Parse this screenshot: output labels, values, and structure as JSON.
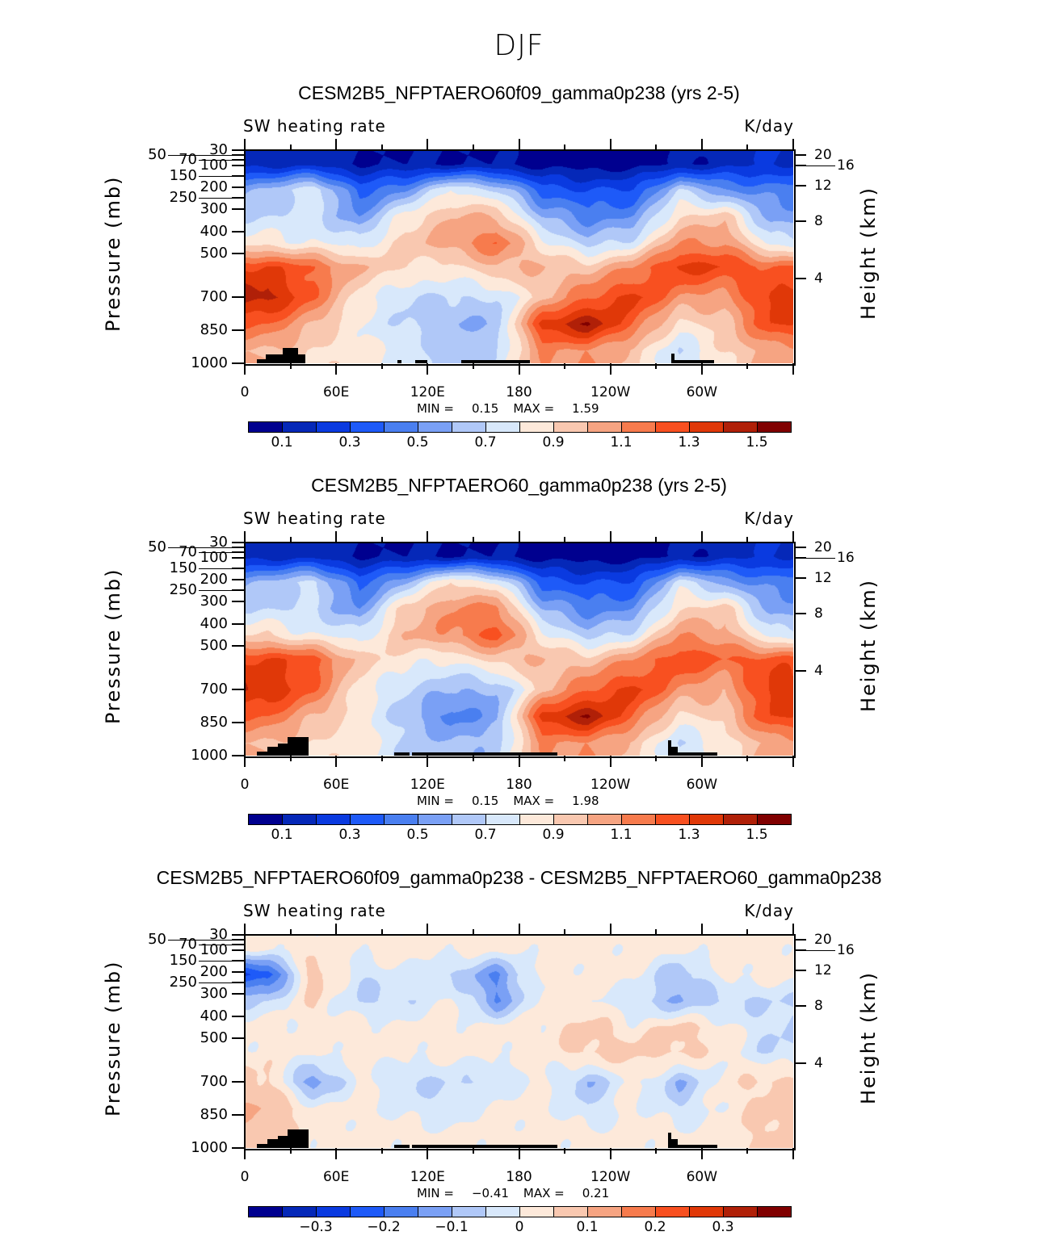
{
  "title": "DJF",
  "chart_data": [
    {
      "type": "heatmap",
      "title": "CESM2B5_NFPTAERO60f09_gamma0p238 (yrs 2-5)",
      "subtitle_left": "SW heating rate",
      "subtitle_right": "K/day",
      "ylabel": "Pressure (mb)",
      "ylabel_right": "Height (km)",
      "xticks": [
        "0",
        "60E",
        "120E",
        "180",
        "120W",
        "60W"
      ],
      "yticks": [
        "30",
        "50",
        "70",
        "100",
        "150",
        "200",
        "250",
        "300",
        "400",
        "500",
        "700",
        "850",
        "1000"
      ],
      "yticks_right": [
        "20",
        "16",
        "12",
        "8",
        "4"
      ],
      "min_label": "MIN =",
      "min": "0.15",
      "max_label": "MAX =",
      "max": "1.59",
      "levels": [
        0.1,
        0.2,
        0.3,
        0.4,
        0.5,
        0.6,
        0.7,
        0.8,
        0.9,
        1.0,
        1.1,
        1.2,
        1.3,
        1.4,
        1.5
      ],
      "colorbar_labels": [
        "0.1",
        "0.3",
        "0.5",
        "0.7",
        "0.9",
        "1.1",
        "1.3",
        "1.5"
      ],
      "grid_lon": [
        15,
        45,
        75,
        105,
        135,
        165,
        195,
        225,
        255,
        285,
        315,
        345
      ],
      "grid_p": [
        90,
        210,
        330,
        450,
        560,
        700,
        820,
        940
      ],
      "values": [
        [
          0.15,
          0.15,
          0.1,
          0.1,
          0.1,
          0.1,
          0.05,
          0.05,
          0.05,
          0.1,
          0.15,
          0.2
        ],
        [
          0.6,
          0.8,
          0.35,
          0.5,
          0.8,
          0.7,
          0.35,
          0.3,
          0.3,
          0.7,
          0.5,
          0.45
        ],
        [
          0.7,
          0.75,
          0.5,
          0.85,
          1.0,
          1.0,
          0.6,
          0.45,
          0.5,
          0.9,
          0.95,
          0.55
        ],
        [
          0.85,
          0.8,
          0.75,
          0.95,
          1.05,
          1.2,
          0.85,
          0.65,
          0.75,
          1.1,
          1.1,
          0.75
        ],
        [
          1.3,
          1.2,
          1.0,
          0.9,
          0.85,
          1.0,
          1.0,
          0.95,
          1.1,
          1.35,
          1.3,
          1.2
        ],
        [
          1.45,
          1.2,
          0.85,
          0.7,
          0.7,
          0.7,
          0.95,
          1.2,
          1.35,
          1.1,
          1.05,
          1.35
        ],
        [
          1.2,
          1.0,
          0.8,
          0.7,
          0.6,
          0.6,
          1.35,
          1.5,
          1.2,
          0.85,
          0.95,
          1.3
        ],
        [
          1.0,
          0.9,
          0.85,
          0.75,
          0.65,
          0.7,
          1.1,
          1.1,
          0.95,
          0.7,
          0.9,
          1.05
        ]
      ],
      "topography": [
        [
          8,
          14,
          980
        ],
        [
          14,
          25,
          960
        ],
        [
          25,
          35,
          930
        ],
        [
          35,
          40,
          960
        ],
        [
          100,
          103,
          985
        ],
        [
          112,
          120,
          985
        ],
        [
          142,
          187,
          985
        ],
        [
          280,
          282,
          955
        ],
        [
          282,
          308,
          985
        ]
      ]
    },
    {
      "type": "heatmap",
      "title": "CESM2B5_NFPTAERO60_gamma0p238 (yrs 2-5)",
      "subtitle_left": "SW heating rate",
      "subtitle_right": "K/day",
      "ylabel": "Pressure (mb)",
      "ylabel_right": "Height (km)",
      "xticks": [
        "0",
        "60E",
        "120E",
        "180",
        "120W",
        "60W"
      ],
      "yticks": [
        "30",
        "50",
        "70",
        "100",
        "150",
        "200",
        "250",
        "300",
        "400",
        "500",
        "700",
        "850",
        "1000"
      ],
      "yticks_right": [
        "20",
        "16",
        "12",
        "8",
        "4"
      ],
      "min_label": "MIN =",
      "min": "0.15",
      "max_label": "MAX =",
      "max": "1.98",
      "levels": [
        0.1,
        0.2,
        0.3,
        0.4,
        0.5,
        0.6,
        0.7,
        0.8,
        0.9,
        1.0,
        1.1,
        1.2,
        1.3,
        1.4,
        1.5
      ],
      "colorbar_labels": [
        "0.1",
        "0.3",
        "0.5",
        "0.7",
        "0.9",
        "1.1",
        "1.3",
        "1.5"
      ],
      "grid_lon": [
        15,
        45,
        75,
        105,
        135,
        165,
        195,
        225,
        255,
        285,
        315,
        345
      ],
      "grid_p": [
        90,
        210,
        330,
        450,
        560,
        700,
        820,
        940
      ],
      "values": [
        [
          0.15,
          0.15,
          0.1,
          0.1,
          0.1,
          0.1,
          0.05,
          0.05,
          0.05,
          0.1,
          0.15,
          0.2
        ],
        [
          0.6,
          0.75,
          0.35,
          0.6,
          0.9,
          0.8,
          0.35,
          0.3,
          0.3,
          0.75,
          0.55,
          0.45
        ],
        [
          0.7,
          0.7,
          0.5,
          0.95,
          1.1,
          1.15,
          0.6,
          0.45,
          0.5,
          0.9,
          0.95,
          0.55
        ],
        [
          0.9,
          0.8,
          0.75,
          1.0,
          1.1,
          1.25,
          0.85,
          0.65,
          0.75,
          1.1,
          1.05,
          0.75
        ],
        [
          1.3,
          1.25,
          0.95,
          0.85,
          0.8,
          0.95,
          1.0,
          0.95,
          1.1,
          1.3,
          1.2,
          1.25
        ],
        [
          1.4,
          1.2,
          0.85,
          0.7,
          0.6,
          0.6,
          0.95,
          1.2,
          1.35,
          1.1,
          1.0,
          1.35
        ],
        [
          1.2,
          1.0,
          0.85,
          0.65,
          0.45,
          0.55,
          1.35,
          1.5,
          1.2,
          0.85,
          0.95,
          1.3
        ],
        [
          1.0,
          0.9,
          0.85,
          0.7,
          0.6,
          0.65,
          1.1,
          1.1,
          0.95,
          0.7,
          0.85,
          1.05
        ]
      ],
      "topography": [
        [
          8,
          15,
          980
        ],
        [
          15,
          22,
          960
        ],
        [
          22,
          28,
          945
        ],
        [
          28,
          42,
          915
        ],
        [
          98,
          108,
          985
        ],
        [
          110,
          205,
          985
        ],
        [
          278,
          280,
          930
        ],
        [
          280,
          284,
          960
        ],
        [
          284,
          310,
          985
        ]
      ]
    },
    {
      "type": "heatmap",
      "title": "CESM2B5_NFPTAERO60f09_gamma0p238 - CESM2B5_NFPTAERO60_gamma0p238",
      "subtitle_left": "SW heating rate",
      "subtitle_right": "K/day",
      "ylabel": "Pressure (mb)",
      "ylabel_right": "Height (km)",
      "xticks": [
        "0",
        "60E",
        "120E",
        "180",
        "120W",
        "60W"
      ],
      "yticks": [
        "30",
        "50",
        "70",
        "100",
        "150",
        "200",
        "250",
        "300",
        "400",
        "500",
        "700",
        "850",
        "1000"
      ],
      "yticks_right": [
        "20",
        "16",
        "12",
        "8",
        "4"
      ],
      "min_label": "MIN =",
      "min": "−0.41",
      "max_label": "MAX =",
      "max": "0.21",
      "levels": [
        -0.35,
        -0.3,
        -0.25,
        -0.2,
        -0.15,
        -0.1,
        -0.05,
        0,
        0.05,
        0.1,
        0.15,
        0.2,
        0.25,
        0.3,
        0.35
      ],
      "colorbar_labels": [
        "−0.3",
        "−0.2",
        "−0.1",
        "0",
        "0.1",
        "0.2",
        "0.3"
      ],
      "grid_lon": [
        15,
        45,
        75,
        105,
        135,
        165,
        195,
        225,
        255,
        285,
        315,
        345
      ],
      "grid_p": [
        90,
        210,
        330,
        450,
        560,
        700,
        820,
        940
      ],
      "values": [
        [
          0.02,
          0.02,
          0.02,
          0.02,
          0.02,
          0.02,
          0.02,
          0.02,
          0.02,
          0.02,
          0.02,
          0.02
        ],
        [
          -0.25,
          0.1,
          -0.05,
          0,
          -0.05,
          -0.15,
          0.02,
          0.02,
          0.02,
          -0.1,
          0.02,
          0.02
        ],
        [
          -0.05,
          0.05,
          -0.05,
          -0.05,
          0.02,
          -0.15,
          0.02,
          0.02,
          -0.05,
          -0.1,
          -0.05,
          -0.05
        ],
        [
          0.02,
          0.02,
          0.02,
          0.02,
          0.02,
          0.02,
          0.02,
          0.07,
          0.02,
          0.07,
          0.02,
          -0.05
        ],
        [
          0.02,
          0.02,
          0.02,
          0.02,
          0.02,
          0.02,
          0.02,
          0.07,
          0.07,
          0.07,
          0.02,
          -0.05
        ],
        [
          0.07,
          -0.15,
          0.02,
          -0.05,
          -0.05,
          -0.05,
          0.02,
          -0.1,
          0.02,
          -0.1,
          0.02,
          0.07
        ],
        [
          0.1,
          0.02,
          0.02,
          -0.02,
          -0.05,
          0.02,
          0.02,
          -0.05,
          0.02,
          -0.05,
          0.02,
          0.07
        ],
        [
          0.07,
          0.02,
          0.02,
          0.02,
          0.02,
          0.02,
          0.02,
          0.02,
          0.02,
          0.02,
          0.02,
          0.07
        ]
      ],
      "topography": [
        [
          8,
          15,
          980
        ],
        [
          15,
          22,
          960
        ],
        [
          22,
          28,
          945
        ],
        [
          28,
          42,
          915
        ],
        [
          98,
          108,
          985
        ],
        [
          110,
          205,
          985
        ],
        [
          278,
          280,
          930
        ],
        [
          280,
          284,
          960
        ],
        [
          284,
          310,
          985
        ]
      ]
    }
  ],
  "colors": [
    "#00008f",
    "#0528b8",
    "#0a3ae0",
    "#1e5af8",
    "#4a7ff0",
    "#7aa0f5",
    "#b0c8f8",
    "#d8e8fb",
    "#fde9da",
    "#f9c8b0",
    "#f6a482",
    "#f77b4d",
    "#f85020",
    "#e03808",
    "#b02008",
    "#800000"
  ]
}
